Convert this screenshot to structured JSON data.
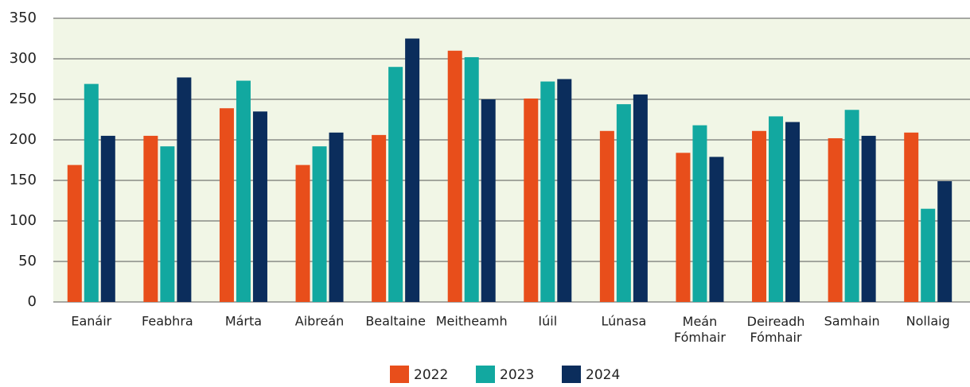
{
  "chart_data": {
    "type": "bar",
    "categories": [
      "Eanáir",
      "Feabhra",
      "Márta",
      "Aibreán",
      "Bealtaine",
      "Meitheamh",
      "Iúil",
      "Lúnasa",
      "Meán Fómhair",
      "Deireadh Fómhair",
      "Samhain",
      "Nollaig"
    ],
    "series": [
      {
        "name": "2022",
        "color": "#e84e1b",
        "values": [
          169,
          205,
          239,
          169,
          206,
          310,
          251,
          211,
          184,
          211,
          202,
          209
        ]
      },
      {
        "name": "2023",
        "color": "#12a8a0",
        "values": [
          269,
          192,
          273,
          192,
          290,
          302,
          272,
          244,
          218,
          229,
          237,
          115
        ]
      },
      {
        "name": "2024",
        "color": "#0b2d5c",
        "values": [
          205,
          277,
          235,
          209,
          325,
          250,
          275,
          256,
          179,
          222,
          205,
          149
        ]
      }
    ],
    "ylim": [
      0,
      350
    ],
    "yticks": [
      0,
      50,
      100,
      150,
      200,
      250,
      300,
      350
    ],
    "grid": true,
    "legend": "bottom"
  }
}
